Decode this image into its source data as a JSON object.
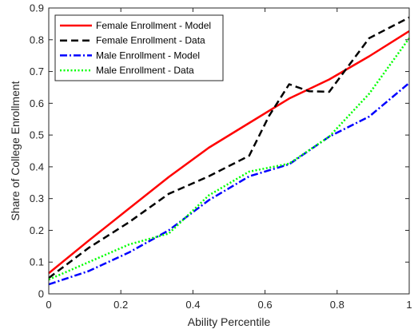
{
  "chart_data": {
    "type": "line",
    "title": "",
    "xlabel": "Ability Percentile",
    "ylabel": "Share of College Enrollment",
    "xlim": [
      0,
      1
    ],
    "ylim": [
      0,
      0.9
    ],
    "xticks": [
      0,
      0.2,
      0.4,
      0.6,
      0.8,
      1
    ],
    "xtick_labels": [
      "0",
      "0.2",
      "0.4",
      "0.6",
      "0.8",
      "1"
    ],
    "yticks": [
      0,
      0.1,
      0.2,
      0.3,
      0.4,
      0.5,
      0.6,
      0.7,
      0.8,
      0.9
    ],
    "ytick_labels": [
      "0",
      "0.1",
      "0.2",
      "0.3",
      "0.4",
      "0.5",
      "0.6",
      "0.7",
      "0.8",
      "0.9"
    ],
    "grid": false,
    "legend_position": "top-left",
    "series": [
      {
        "name": "Female Enrollment -  Model",
        "color": "#ff0000",
        "dash": "solid",
        "x": [
          0,
          0.111,
          0.222,
          0.333,
          0.444,
          0.556,
          0.667,
          0.778,
          0.889,
          1.0
        ],
        "y": [
          0.065,
          0.168,
          0.268,
          0.368,
          0.46,
          0.538,
          0.615,
          0.675,
          0.748,
          0.827
        ]
      },
      {
        "name": "Female Enrollment -  Data",
        "color": "#000000",
        "dash": "dashed",
        "x": [
          0,
          0.111,
          0.222,
          0.333,
          0.444,
          0.556,
          0.611,
          0.667,
          0.722,
          0.778,
          0.889,
          1.0
        ],
        "y": [
          0.05,
          0.145,
          0.225,
          0.315,
          0.37,
          0.435,
          0.56,
          0.66,
          0.638,
          0.636,
          0.805,
          0.87
        ]
      },
      {
        "name": "Male Enrollment -  Model",
        "color": "#0000ff",
        "dash": "dashdot",
        "x": [
          0,
          0.111,
          0.222,
          0.333,
          0.444,
          0.556,
          0.667,
          0.778,
          0.889,
          1.0
        ],
        "y": [
          0.03,
          0.072,
          0.13,
          0.2,
          0.295,
          0.37,
          0.408,
          0.495,
          0.558,
          0.664
        ]
      },
      {
        "name": "Male Enrollment -  Data",
        "color": "#00ff00",
        "dash": "dotted",
        "x": [
          0,
          0.111,
          0.222,
          0.333,
          0.444,
          0.556,
          0.667,
          0.778,
          0.889,
          1.0
        ],
        "y": [
          0.045,
          0.1,
          0.155,
          0.19,
          0.31,
          0.385,
          0.41,
          0.495,
          0.63,
          0.805
        ]
      }
    ]
  }
}
